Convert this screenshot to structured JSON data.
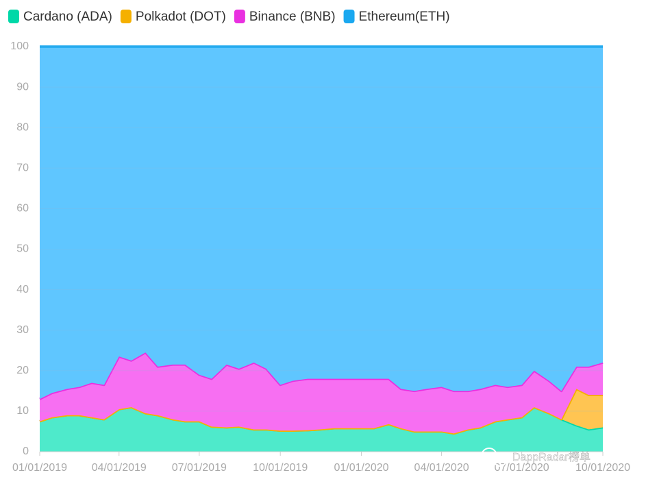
{
  "chart_data": {
    "type": "stacked_area",
    "watermark": "DappRadar榜单",
    "x": [
      "01/01/2019",
      "01/15/2019",
      "02/01/2019",
      "02/15/2019",
      "03/01/2019",
      "03/15/2019",
      "04/01/2019",
      "04/15/2019",
      "05/01/2019",
      "05/15/2019",
      "06/01/2019",
      "06/15/2019",
      "07/01/2019",
      "07/15/2019",
      "08/01/2019",
      "08/15/2019",
      "09/01/2019",
      "09/15/2019",
      "10/01/2019",
      "10/15/2019",
      "11/01/2019",
      "11/15/2019",
      "12/01/2019",
      "12/15/2019",
      "01/01/2020",
      "01/15/2020",
      "02/01/2020",
      "02/15/2020",
      "03/01/2020",
      "03/15/2020",
      "04/01/2020",
      "04/15/2020",
      "05/01/2020",
      "05/15/2020",
      "06/01/2020",
      "06/15/2020",
      "07/01/2020",
      "07/15/2020",
      "08/01/2020",
      "08/15/2020",
      "09/01/2020",
      "09/15/2020",
      "10/01/2020"
    ],
    "series": [
      {
        "name": "Cardano (ADA)",
        "color": "#00d8a8",
        "fill": "#4eeacb",
        "values": [
          7.5,
          8.5,
          9,
          9,
          8.5,
          8,
          10.5,
          11,
          9.5,
          9,
          8,
          7.5,
          7.5,
          6.2,
          6,
          6.2,
          5.5,
          5.5,
          5.2,
          5.2,
          5.3,
          5.5,
          5.8,
          5.8,
          5.8,
          5.8,
          6.8,
          5.8,
          5,
          5,
          5,
          4.5,
          5.5,
          6,
          7.5,
          8,
          8.5,
          11,
          9.5,
          8,
          6.5,
          5.5,
          6
        ]
      },
      {
        "name": "Polkadot (DOT)",
        "color": "#f5b000",
        "fill": "#ffc552",
        "values": [
          0,
          0,
          0,
          0,
          0,
          0,
          0,
          0,
          0,
          0,
          0,
          0,
          0,
          0,
          0,
          0,
          0,
          0,
          0,
          0,
          0,
          0,
          0,
          0,
          0,
          0,
          0,
          0,
          0,
          0,
          0,
          0,
          0,
          0,
          0,
          0,
          0,
          0,
          0,
          0,
          9,
          8.5,
          8
        ]
      },
      {
        "name": "Binance (BNB)",
        "color": "#e930e0",
        "fill": "#f76ff2",
        "values": [
          5.5,
          6,
          6.5,
          7,
          8.5,
          8.5,
          13,
          11.5,
          15,
          12,
          13.5,
          14,
          11.5,
          11.8,
          15.5,
          14.3,
          16.5,
          15,
          11.3,
          12.3,
          12.7,
          12.5,
          12.2,
          12.2,
          12.2,
          12.2,
          11.2,
          9.7,
          10,
          10.5,
          11,
          10.5,
          9.5,
          9.5,
          9,
          8,
          8,
          9,
          8,
          7,
          5.5,
          7,
          8
        ]
      },
      {
        "name": "Ethereum(ETH)",
        "color": "#1aa8f0",
        "fill": "#5fc6ff",
        "values": [
          87,
          85.5,
          84.5,
          84,
          83,
          83.5,
          76.5,
          77.5,
          75.5,
          79,
          78.5,
          78.5,
          81,
          82,
          78.5,
          79.5,
          78,
          79.5,
          83.5,
          82.5,
          82,
          82,
          82,
          82,
          82,
          82,
          82,
          84.5,
          85,
          84.5,
          84,
          85,
          85,
          84.5,
          83.5,
          84,
          83.5,
          80,
          82.5,
          85,
          79,
          79,
          78
        ]
      }
    ],
    "xlim": [
      "01/01/2019",
      "10/01/2020"
    ],
    "xticks": [
      "01/01/2019",
      "04/01/2019",
      "07/01/2019",
      "10/01/2019",
      "01/01/2020",
      "04/01/2020",
      "07/01/2020",
      "10/01/2020"
    ],
    "ylim": [
      0,
      100
    ],
    "yticks": [
      0,
      10,
      20,
      30,
      40,
      50,
      60,
      70,
      80,
      90,
      100
    ],
    "grid": true,
    "legend": "top"
  }
}
